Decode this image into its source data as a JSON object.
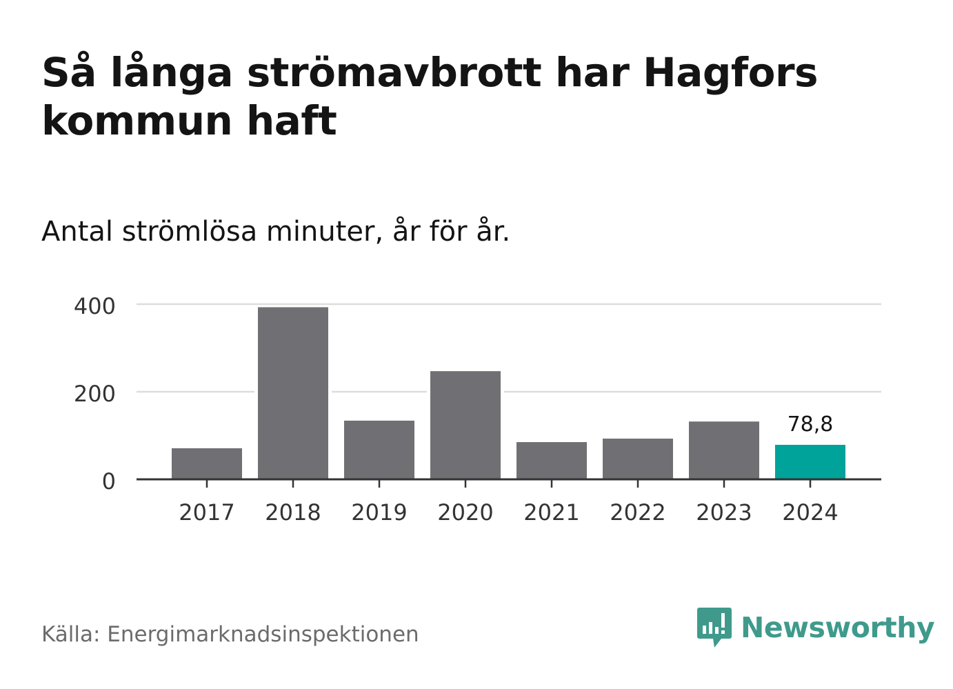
{
  "title": "Så långa strömavbrott har Hagfors kommun haft",
  "subtitle": "Antal strömlösa minuter, år för år.",
  "source": "Källa: Energimarknadsinspektionen",
  "brand": {
    "name": "Newsworthy",
    "icon": "newsworthy-logo-icon",
    "color": "#3f9a8c"
  },
  "chart_data": {
    "type": "bar",
    "categories": [
      "2017",
      "2018",
      "2019",
      "2020",
      "2021",
      "2022",
      "2023",
      "2024"
    ],
    "values": [
      71,
      393,
      134,
      247,
      85,
      93,
      132,
      78.8
    ],
    "highlight_index": 7,
    "highlight_label": "78,8",
    "ylim": [
      0,
      400
    ],
    "yticks": [
      0,
      200,
      400
    ],
    "grid": true,
    "colors": {
      "bar": "#707074",
      "highlight": "#00a39a",
      "grid": "#dddddd",
      "axis": "#333333"
    }
  }
}
